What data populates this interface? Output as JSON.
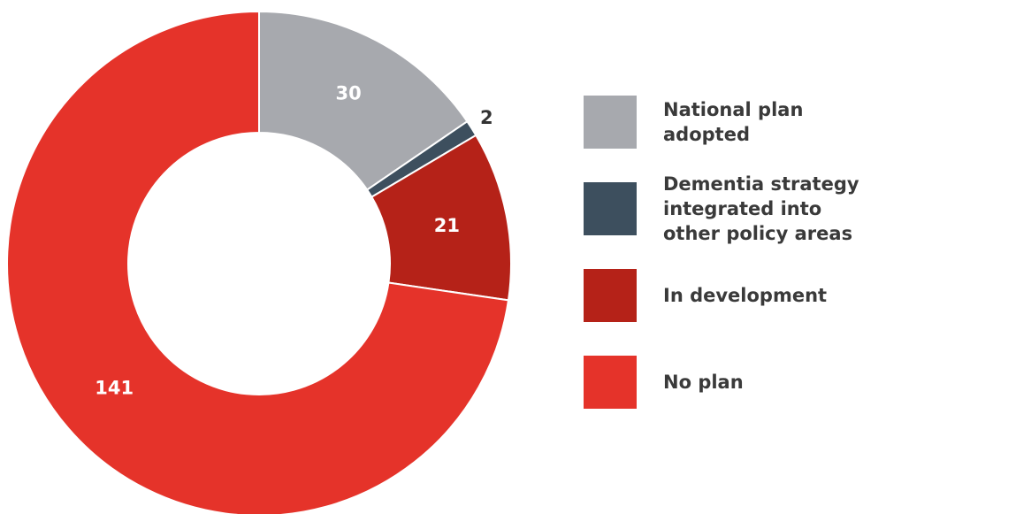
{
  "chart_data": {
    "type": "donut",
    "categories": [
      "National plan adopted",
      "Dementia strategy integrated into other policy areas",
      "In development",
      "No plan"
    ],
    "values": [
      30,
      2,
      21,
      141
    ],
    "colors": [
      "#a7a9ae",
      "#3d4f5e",
      "#b52218",
      "#e5332a"
    ]
  }
}
